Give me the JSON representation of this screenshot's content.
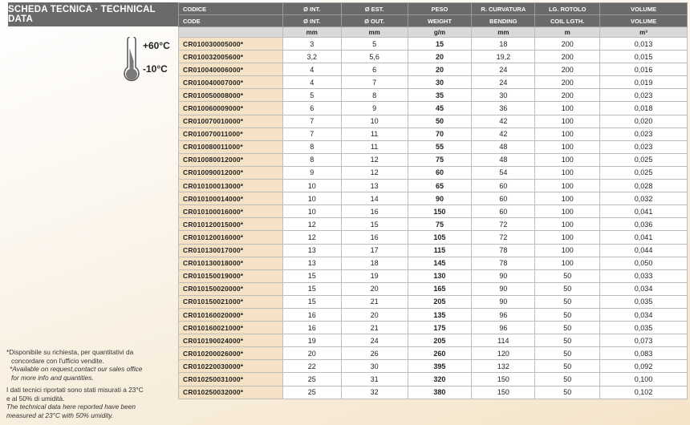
{
  "title": "SCHEDA TECNICA · TECHNICAL DATA",
  "temperature": {
    "max": "+60°C",
    "min": "-10°C",
    "icon": "thermometer-icon"
  },
  "table": {
    "header_it": [
      "CODICE",
      "Ø INT.",
      "Ø EST.",
      "PESO",
      "R. CURVATURA",
      "LG. ROTOLO",
      "VOLUME"
    ],
    "header_en": [
      "CODE",
      "Ø INT.",
      "Ø OUT.",
      "WEIGHT",
      "BENDING",
      "COIL LGTH.",
      "VOLUME"
    ],
    "units": [
      "",
      "mm",
      "mm",
      "g/m",
      "mm",
      "m",
      "m³"
    ],
    "rows": [
      [
        "CR010030005000*",
        "3",
        "5",
        "15",
        "18",
        "200",
        "0,013"
      ],
      [
        "CR010032005600*",
        "3,2",
        "5,6",
        "20",
        "19,2",
        "200",
        "0,015"
      ],
      [
        "CR010040006000*",
        "4",
        "6",
        "20",
        "24",
        "200",
        "0,016"
      ],
      [
        "CR010040007000*",
        "4",
        "7",
        "30",
        "24",
        "200",
        "0,019"
      ],
      [
        "CR010050008000*",
        "5",
        "8",
        "35",
        "30",
        "200",
        "0,023"
      ],
      [
        "CR010060009000*",
        "6",
        "9",
        "45",
        "36",
        "100",
        "0,018"
      ],
      [
        "CR010070010000*",
        "7",
        "10",
        "50",
        "42",
        "100",
        "0,020"
      ],
      [
        "CR010070011000*",
        "7",
        "11",
        "70",
        "42",
        "100",
        "0,023"
      ],
      [
        "CR010080011000*",
        "8",
        "11",
        "55",
        "48",
        "100",
        "0,023"
      ],
      [
        "CR010080012000*",
        "8",
        "12",
        "75",
        "48",
        "100",
        "0,025"
      ],
      [
        "CR010090012000*",
        "9",
        "12",
        "60",
        "54",
        "100",
        "0,025"
      ],
      [
        "CR010100013000*",
        "10",
        "13",
        "65",
        "60",
        "100",
        "0,028"
      ],
      [
        "CR010100014000*",
        "10",
        "14",
        "90",
        "60",
        "100",
        "0,032"
      ],
      [
        "CR010100016000*",
        "10",
        "16",
        "150",
        "60",
        "100",
        "0,041"
      ],
      [
        "CR010120015000*",
        "12",
        "15",
        "75",
        "72",
        "100",
        "0,036"
      ],
      [
        "CR010120016000*",
        "12",
        "16",
        "105",
        "72",
        "100",
        "0,041"
      ],
      [
        "CR010130017000*",
        "13",
        "17",
        "115",
        "78",
        "100",
        "0,044"
      ],
      [
        "CR010130018000*",
        "13",
        "18",
        "145",
        "78",
        "100",
        "0,050"
      ],
      [
        "CR010150019000*",
        "15",
        "19",
        "130",
        "90",
        "50",
        "0,033"
      ],
      [
        "CR010150020000*",
        "15",
        "20",
        "165",
        "90",
        "50",
        "0,034"
      ],
      [
        "CR010150021000*",
        "15",
        "21",
        "205",
        "90",
        "50",
        "0,035"
      ],
      [
        "CR010160020000*",
        "16",
        "20",
        "135",
        "96",
        "50",
        "0,034"
      ],
      [
        "CR010160021000*",
        "16",
        "21",
        "175",
        "96",
        "50",
        "0,035"
      ],
      [
        "CR010190024000*",
        "19",
        "24",
        "205",
        "114",
        "50",
        "0,073"
      ],
      [
        "CR010200026000*",
        "20",
        "26",
        "260",
        "120",
        "50",
        "0,083"
      ],
      [
        "CR010220030000*",
        "22",
        "30",
        "395",
        "132",
        "50",
        "0,092"
      ],
      [
        "CR010250031000*",
        "25",
        "31",
        "320",
        "150",
        "50",
        "0,100"
      ],
      [
        "CR010250032000*",
        "25",
        "32",
        "380",
        "150",
        "50",
        "0,102"
      ]
    ]
  },
  "notes": {
    "availability_it_1": "*Disponibile su richiesta, per quantitativi da",
    "availability_it_2": "concordare con l'ufficio vendite.",
    "availability_en_1": "*Available on request,contact our sales office",
    "availability_en_2": "for more info and quantities.",
    "conditions_it_1": "I dati tecnici riportati sono stati misurati a 23°C",
    "conditions_it_2": "e al 50% di umidità.",
    "conditions_en_1": "The technical data here reported have been",
    "conditions_en_2": "measured at 23°C with 50% umidity."
  }
}
